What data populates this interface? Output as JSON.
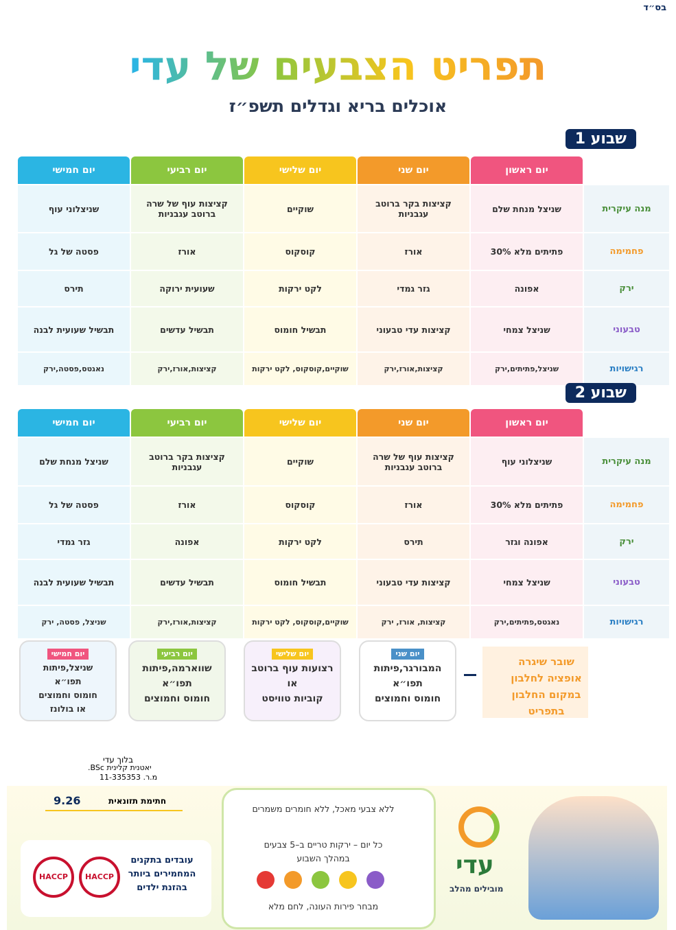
{
  "header": {
    "bsd": "בס״ד",
    "title": "תפריט הצבעים של עדי",
    "subtitle": "אוכלים בריא וגדלים תשפ״ז"
  },
  "weeks": [
    {
      "label": "שבוע 1",
      "days": [
        "יום ראשון",
        "יום שני",
        "יום שלישי",
        "יום רביעי",
        "יום חמישי"
      ],
      "rows": [
        {
          "label": "מנה עיקרית",
          "cells": [
            "שניצל מנחת שלם",
            "קציצות בקר ברוטב עגבניות",
            "שוקיים",
            "קציצות עוף של שרה ברוטב עגבניות",
            "שניצלוני עוף"
          ]
        },
        {
          "label": "פחמימה",
          "cells": [
            "פתיתים מלא 30%",
            "אורז",
            "קוסקוס",
            "אורז",
            "פסטה של גל"
          ]
        },
        {
          "label": "ירק",
          "cells": [
            "אפונה",
            "גזר גמדי",
            "לקט ירקות",
            "שעועית ירוקה",
            "תירס"
          ]
        },
        {
          "label": "טבעוני",
          "cells": [
            "שניצל צמחי",
            "קציצות עדי טבעוני",
            "תבשיל חומוס",
            "תבשיל עדשים",
            "תבשיל שעועית לבנה"
          ]
        },
        {
          "label": "רגישויות",
          "cells": [
            "שניצל,פתיתים,ירק",
            "קציצות,אורז,ירק",
            "שוקיים,קוסקוס, לקט ירקות",
            "קציצות,אורז,ירק",
            "נאגטס,פסטה,ירק"
          ]
        }
      ]
    },
    {
      "label": "שבוע 2",
      "days": [
        "יום ראשון",
        "יום שני",
        "יום שלישי",
        "יום רביעי",
        "יום חמישי"
      ],
      "rows": [
        {
          "label": "מנה עיקרית",
          "cells": [
            "שניצלוני עוף",
            "קציצות עוף של שרה ברוטב עגבניות",
            "שוקיים",
            "קציצות בקר ברוטב עגבניות",
            "שניצל מנחת שלם"
          ]
        },
        {
          "label": "פחמימה",
          "cells": [
            "פתיתים מלא 30%",
            "אורז",
            "קוסקוס",
            "אורז",
            "פסטה של גל"
          ]
        },
        {
          "label": "ירק",
          "cells": [
            "אפונה וגזר",
            "תירס",
            "לקט ירקות",
            "אפונה",
            "גזר גמדי"
          ]
        },
        {
          "label": "טבעוני",
          "cells": [
            "שניצל צמחי",
            "קציצות עדי טבעוני",
            "תבשיל חומוס",
            "תבשיל עדשים",
            "תבשיל שעועית לבנה"
          ]
        },
        {
          "label": "רגישויות",
          "cells": [
            "נאגטס,פתיתים,ירק",
            "קציצות, אורז, ירק",
            "שוקיים,קוסקוס, לקט ירקות",
            "קציצות,אורז,ירק",
            "שניצל, פסטה, ירק"
          ]
        }
      ]
    }
  ],
  "voucher": "שובר שיגרה אופציה לחלבון במקום החלבון בתפריט",
  "specials": [
    {
      "day": "יום שני",
      "lines": [
        "המבורגר,פיתות",
        "תפו״א",
        "חומוס וחמוצים"
      ]
    },
    {
      "day": "יום שלישי",
      "lines": [
        "רצועות עוף ברוטב",
        "או",
        "קוביות טוויסט"
      ]
    },
    {
      "day": "יום רביעי",
      "lines": [
        "שווארמה,פיתות",
        "תפו״א",
        "חומוס וחמוצים"
      ]
    },
    {
      "day": "יום חמישי",
      "lines": [
        "שניצל,פיתות",
        "תפו״א",
        "חומוס וחמוצים",
        "או בולונז"
      ]
    }
  ],
  "signature": {
    "name": "בלוך עדי",
    "role": "יאטנית קלינית BSc.",
    "license": "מ.ר. 11-335353",
    "caption": "חתימת תזונאית",
    "date": "9.26"
  },
  "footer": {
    "standards": "עובדים בתקנים המחמירים ביותר בהזנת ילדים",
    "badges": [
      "HACCP",
      "HACCP"
    ],
    "points": [
      "ללא צבעי מאכל, ללא חומרים משמרים",
      "כל יום – ירקות טריים ב–5 צבעים במהלך השבוע",
      "מבחר פירות העונה, לחם מלא"
    ],
    "logo": "עדי",
    "slogan": "מובילים מהלב"
  }
}
